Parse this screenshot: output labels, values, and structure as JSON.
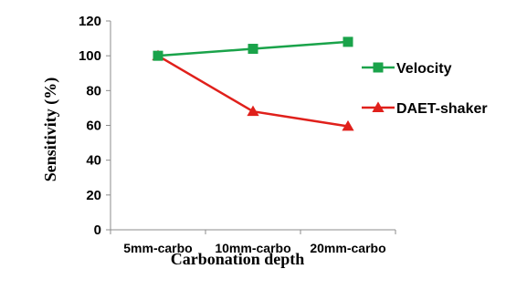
{
  "chart_data": {
    "type": "line",
    "title": "",
    "xlabel": "Carbonation depth",
    "ylabel": "Sensitivity (%)",
    "categories": [
      "5mm-carbo",
      "10mm-carbo",
      "20mm-carbo"
    ],
    "ylim": [
      0,
      120
    ],
    "yticks": [
      0,
      20,
      40,
      60,
      80,
      100,
      120
    ],
    "ytick_labels": [
      "0",
      "20",
      "40",
      "60",
      "80",
      "100",
      "120"
    ],
    "grid": false,
    "legend_position": "right",
    "series": [
      {
        "name": "Velocity",
        "values": [
          100,
          104,
          108
        ],
        "color": "#1aa34a",
        "marker": "square"
      },
      {
        "name": "DAET-shaker",
        "values": [
          100,
          68,
          59.5
        ],
        "color": "#e0201b",
        "marker": "triangle"
      }
    ]
  }
}
